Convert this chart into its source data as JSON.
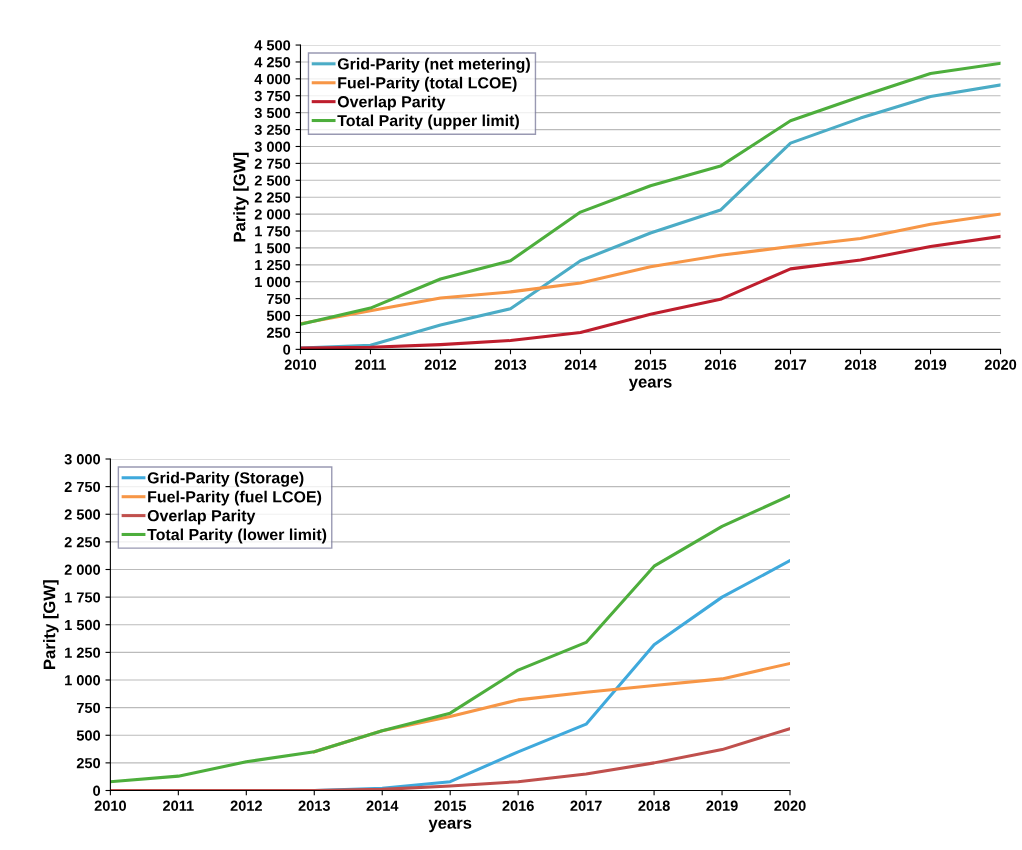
{
  "chart_data": [
    {
      "type": "line",
      "xlabel": "years",
      "ylabel": "Parity [GW]",
      "categories": [
        "2010",
        "2011",
        "2012",
        "2013",
        "2014",
        "2015",
        "2016",
        "2017",
        "2018",
        "2019",
        "2020"
      ],
      "ylim": [
        0,
        4500
      ],
      "yticks": [
        0,
        250,
        500,
        750,
        {
          "value": 1000,
          "label": "1 000"
        },
        {
          "value": 1250,
          "label": "1 250"
        },
        {
          "value": 1500,
          "label": "1 500"
        },
        {
          "value": 1750,
          "label": "1 750"
        },
        {
          "value": 2000,
          "label": "2 000"
        },
        {
          "value": 2250,
          "label": "2 250"
        },
        {
          "value": 2500,
          "label": "2 500"
        },
        {
          "value": 2750,
          "label": "2 750"
        },
        {
          "value": 3000,
          "label": "3 000"
        },
        {
          "value": 3250,
          "label": "3 250"
        },
        {
          "value": 3500,
          "label": "3 500"
        },
        {
          "value": 3750,
          "label": "3 750"
        },
        {
          "value": 4000,
          "label": "4 000"
        },
        {
          "value": 4250,
          "label": "4 250"
        },
        {
          "value": 4500,
          "label": "4 500"
        }
      ],
      "grid": "y",
      "legend": "top left",
      "marker": "none",
      "line_style": "solid",
      "series": [
        {
          "name": "Grid-Parity (net metering)",
          "color": "#4bacc6",
          "values": [
            20,
            60,
            360,
            600,
            1310,
            1720,
            2060,
            3050,
            3420,
            3740,
            3910
          ]
        },
        {
          "name": "Fuel-Parity (total LCOE)",
          "color": "#f79646",
          "values": [
            380,
            570,
            760,
            850,
            980,
            1220,
            1390,
            1520,
            1640,
            1850,
            2000
          ]
        },
        {
          "name": "Overlap Parity",
          "color": "#be1e2d",
          "values": [
            20,
            30,
            70,
            130,
            250,
            520,
            740,
            1190,
            1320,
            1520,
            1670
          ]
        },
        {
          "name": "Total Parity (upper limit)",
          "color": "#4dae3c",
          "values": [
            370,
            610,
            1040,
            1310,
            2030,
            2420,
            2710,
            3380,
            3740,
            4080,
            4230
          ]
        }
      ]
    },
    {
      "type": "line",
      "xlabel": "years",
      "ylabel": "Parity [GW]",
      "categories": [
        "2010",
        "2011",
        "2012",
        "2013",
        "2014",
        "2015",
        "2016",
        "2017",
        "2018",
        "2019",
        "2020"
      ],
      "ylim": [
        0,
        3000
      ],
      "yticks": [
        0,
        250,
        500,
        750,
        {
          "value": 1000,
          "label": "1 000"
        },
        {
          "value": 1250,
          "label": "1 250"
        },
        {
          "value": 1500,
          "label": "1 500"
        },
        {
          "value": 1750,
          "label": "1 750"
        },
        {
          "value": 2000,
          "label": "2 000"
        },
        {
          "value": 2250,
          "label": "2 250"
        },
        {
          "value": 2500,
          "label": "2 500"
        },
        {
          "value": 2750,
          "label": "2 750"
        },
        {
          "value": 3000,
          "label": "3 000"
        }
      ],
      "grid": "y",
      "legend": "top left",
      "marker": "none",
      "line_style": "solid",
      "series": [
        {
          "name": "Grid-Parity (Storage)",
          "color": "#3fa9dc",
          "values": [
            null,
            null,
            null,
            0,
            20,
            80,
            350,
            600,
            1320,
            1750,
            2080
          ]
        },
        {
          "name": "Fuel-Parity (fuel LCOE)",
          "color": "#f79646",
          "values": [
            null,
            null,
            null,
            350,
            540,
            670,
            820,
            890,
            950,
            1010,
            1150
          ]
        },
        {
          "name": "Overlap Parity",
          "color": "#c0504d",
          "values": [
            0,
            0,
            0,
            0,
            10,
            40,
            80,
            150,
            250,
            370,
            560
          ]
        },
        {
          "name": "Total Parity (lower limit)",
          "color": "#4dae3c",
          "values": [
            80,
            130,
            260,
            350,
            540,
            700,
            1090,
            1340,
            2030,
            2390,
            2670
          ]
        }
      ]
    }
  ]
}
